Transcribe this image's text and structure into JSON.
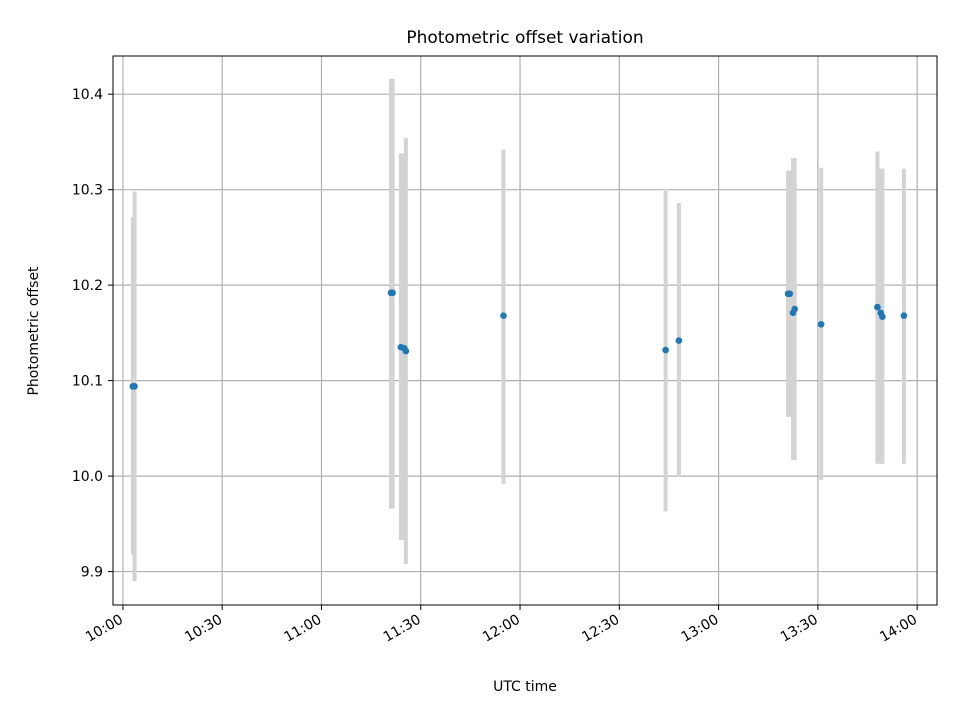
{
  "chart_data": {
    "type": "scatter",
    "title": "Photometric offset variation",
    "xlabel": "UTC time",
    "ylabel": "Photometric offset",
    "x_axis_type": "time",
    "xlim": [
      "09:57",
      "14:06"
    ],
    "ylim": [
      9.865,
      10.44
    ],
    "x_ticks": [
      "10:00",
      "10:30",
      "11:00",
      "11:30",
      "12:00",
      "12:30",
      "13:00",
      "13:30",
      "14:00"
    ],
    "y_ticks": [
      9.9,
      10.0,
      10.1,
      10.2,
      10.3,
      10.4
    ],
    "y_tick_labels": [
      "9.9",
      "10.0",
      "10.1",
      "10.2",
      "10.3",
      "10.4"
    ],
    "grid": true,
    "marker_color": "#1f77b4",
    "errorbar_color": "#d3d3d3",
    "points": [
      {
        "x": "10:03:00",
        "y": 10.094,
        "ylow": 9.918,
        "yhigh": 10.271
      },
      {
        "x": "10:03:30",
        "y": 10.094,
        "ylow": 9.89,
        "yhigh": 10.298
      },
      {
        "x": "11:21:00",
        "y": 10.192,
        "ylow": 9.966,
        "yhigh": 10.416
      },
      {
        "x": "11:21:30",
        "y": 10.192,
        "ylow": 9.966,
        "yhigh": 10.416
      },
      {
        "x": "11:24:00",
        "y": 10.135,
        "ylow": 9.933,
        "yhigh": 10.338
      },
      {
        "x": "11:25:00",
        "y": 10.134,
        "ylow": 9.933,
        "yhigh": 10.338
      },
      {
        "x": "11:25:30",
        "y": 10.131,
        "ylow": 9.908,
        "yhigh": 10.354
      },
      {
        "x": "11:55:00",
        "y": 10.168,
        "ylow": 9.992,
        "yhigh": 10.342
      },
      {
        "x": "12:44:00",
        "y": 10.132,
        "ylow": 9.963,
        "yhigh": 10.301
      },
      {
        "x": "12:48:00",
        "y": 10.142,
        "ylow": 9.999,
        "yhigh": 10.286
      },
      {
        "x": "13:21:00",
        "y": 10.191,
        "ylow": 10.062,
        "yhigh": 10.32
      },
      {
        "x": "13:21:30",
        "y": 10.191,
        "ylow": 10.062,
        "yhigh": 10.32
      },
      {
        "x": "13:22:30",
        "y": 10.171,
        "ylow": 10.017,
        "yhigh": 10.333
      },
      {
        "x": "13:23:00",
        "y": 10.175,
        "ylow": 10.017,
        "yhigh": 10.333
      },
      {
        "x": "13:31:00",
        "y": 10.159,
        "ylow": 9.996,
        "yhigh": 10.323
      },
      {
        "x": "13:48:00",
        "y": 10.177,
        "ylow": 10.013,
        "yhigh": 10.34
      },
      {
        "x": "13:49:00",
        "y": 10.171,
        "ylow": 10.013,
        "yhigh": 10.322
      },
      {
        "x": "13:49:30",
        "y": 10.167,
        "ylow": 10.013,
        "yhigh": 10.322
      },
      {
        "x": "13:56:00",
        "y": 10.168,
        "ylow": 10.013,
        "yhigh": 10.322
      }
    ]
  }
}
